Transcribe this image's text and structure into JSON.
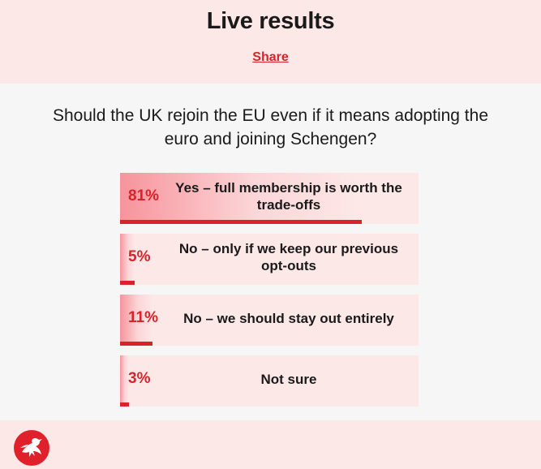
{
  "header": {
    "title": "Live results",
    "share_label": "Share"
  },
  "poll": {
    "question": "Should the UK rejoin the EU even if it means adopting the euro and joining Schengen?",
    "options": [
      {
        "percent": 81,
        "percent_label": "81%",
        "label": "Yes – full membership is worth the trade-offs"
      },
      {
        "percent": 5,
        "percent_label": "5%",
        "label": "No – only if we keep our previous opt-outs"
      },
      {
        "percent": 11,
        "percent_label": "11%",
        "label": "No – we should stay out entirely"
      },
      {
        "percent": 3,
        "percent_label": "3%",
        "label": "Not sure"
      }
    ]
  },
  "footer": {
    "logo_icon": "eagle-logo-icon"
  },
  "colors": {
    "accent": "#d9222a",
    "panel": "#fde8e8",
    "background": "#f6f6f6"
  }
}
